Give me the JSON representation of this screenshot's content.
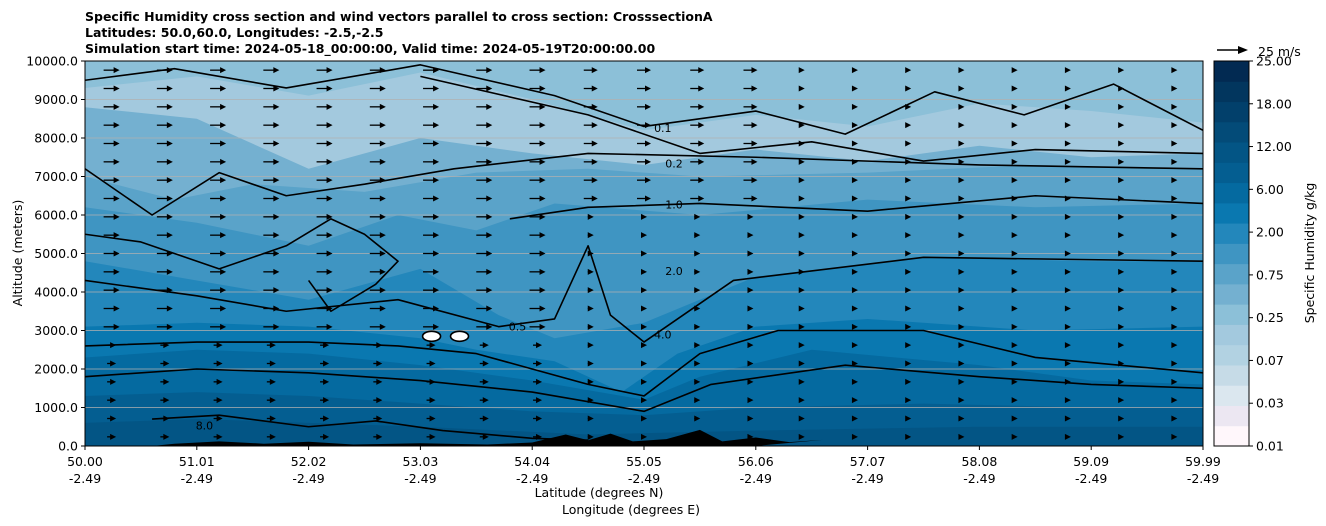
{
  "title": {
    "line1": "Specific Humidity cross section and wind vectors parallel to cross section: CrosssectionA",
    "line2": "Latitudes: 50.0,60.0, Longitudes: -2.5,-2.5",
    "line3": "Simulation start time: 2024-05-18_00:00:00, Valid time: 2024-05-19T20:00:00.00"
  },
  "chart_data": {
    "type": "heatmap",
    "subtype": "filled contour cross-section with line contours and wind quiver",
    "xlabel_line1": "Latitude (degrees N)",
    "xlabel_line2": "Longitude (degrees E)",
    "ylabel": "Altitude (meters)",
    "colorbar_label": "Specific Humidity g/kg",
    "colormap": "PuBu",
    "grid": "horizontal gridlines only",
    "x_ticks": [
      {
        "lat": "50.00",
        "lon": "-2.49"
      },
      {
        "lat": "51.01",
        "lon": "-2.49"
      },
      {
        "lat": "52.02",
        "lon": "-2.49"
      },
      {
        "lat": "53.03",
        "lon": "-2.49"
      },
      {
        "lat": "54.04",
        "lon": "-2.49"
      },
      {
        "lat": "55.05",
        "lon": "-2.49"
      },
      {
        "lat": "56.06",
        "lon": "-2.49"
      },
      {
        "lat": "57.07",
        "lon": "-2.49"
      },
      {
        "lat": "58.08",
        "lon": "-2.49"
      },
      {
        "lat": "59.09",
        "lon": "-2.49"
      },
      {
        "lat": "59.99",
        "lon": "-2.49"
      }
    ],
    "xlim": [
      50.0,
      59.99
    ],
    "y_ticks": [
      "0.0",
      "1000.0",
      "2000.0",
      "3000.0",
      "4000.0",
      "5000.0",
      "6000.0",
      "7000.0",
      "8000.0",
      "9000.0",
      "10000.0"
    ],
    "ylim": [
      0,
      10000
    ],
    "colorbar_ticks": [
      "0.01",
      "0.03",
      "0.07",
      "0.25",
      "0.75",
      "2.00",
      "6.00",
      "12.00",
      "18.00",
      "25.00"
    ],
    "colorbar_levels": [
      0.01,
      0.02,
      0.03,
      0.05,
      0.07,
      0.1,
      0.25,
      0.5,
      0.75,
      1.0,
      2.0,
      4.0,
      6.0,
      8.0,
      12.0,
      15.0,
      18.0,
      22.0,
      25.0
    ],
    "colorbar_colors": [
      "#fff7fb",
      "#ece7f2",
      "#dbe7ef",
      "#c6dbe7",
      "#b2d2e2",
      "#a3c9de",
      "#8cc0d8",
      "#74b0d0",
      "#5aa3c9",
      "#3f95c2",
      "#2387bb",
      "#0a78b0",
      "#056aa0",
      "#045e91",
      "#035585",
      "#034b78",
      "#02406b",
      "#02365e",
      "#022a52"
    ],
    "contour_labels": [
      "0.1",
      "0.2",
      "0.5",
      "1.0",
      "2.0",
      "4.0",
      "8.0"
    ],
    "quiver_key": {
      "label": "25 m/s",
      "value": 25
    },
    "wind_direction": "eastward along section (northward), strongest aloft between 50.0 and 54.0 N"
  }
}
